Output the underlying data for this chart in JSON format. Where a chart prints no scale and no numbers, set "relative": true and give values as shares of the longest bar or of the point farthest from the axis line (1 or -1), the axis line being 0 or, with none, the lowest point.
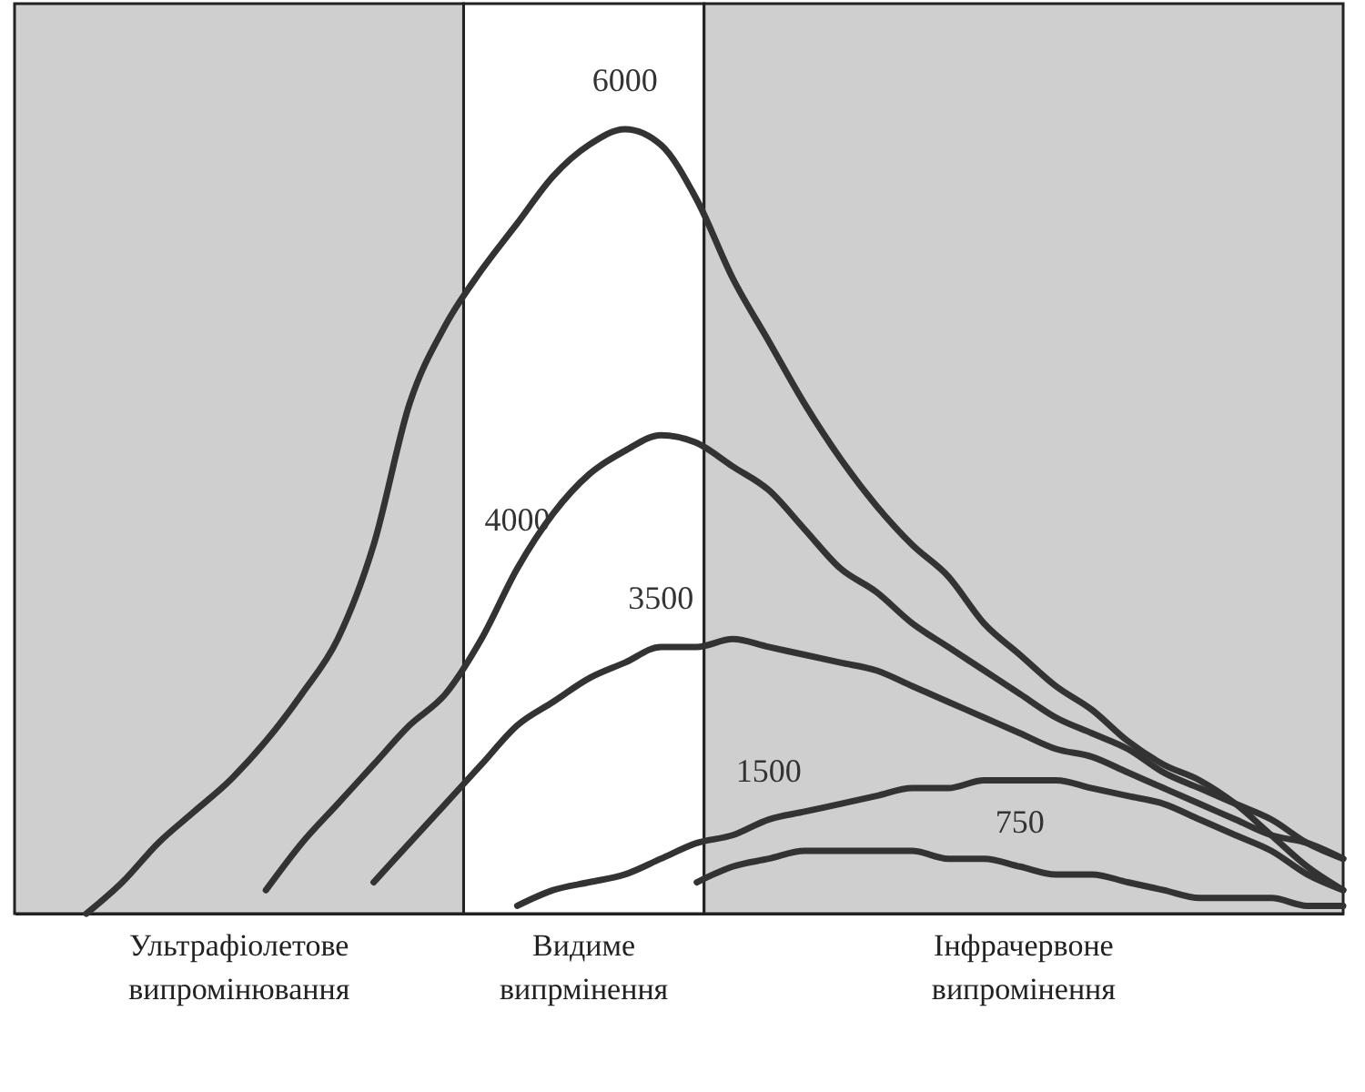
{
  "chart_data": {
    "type": "line",
    "relative": true,
    "tick_labels": false,
    "categories": [
      null,
      null,
      null,
      null,
      null,
      null,
      null,
      null,
      null,
      null,
      null,
      null,
      null,
      null,
      null,
      null,
      null,
      null,
      null,
      null,
      null,
      null,
      null,
      null,
      null,
      null,
      null,
      null,
      null,
      null,
      null,
      null,
      null,
      null,
      null,
      null,
      null,
      null
    ],
    "series": [
      {
        "name": "6000",
        "color": "#333333",
        "values": [
          null,
          null,
          0,
          0.04,
          0.09,
          0.13,
          0.17,
          0.22,
          0.28,
          0.35,
          0.47,
          0.65,
          0.75,
          0.82,
          0.88,
          0.94,
          0.98,
          1,
          0.98,
          0.91,
          0.81,
          0.73,
          0.65,
          0.58,
          0.52,
          0.47,
          0.43,
          0.37,
          0.33,
          0.29,
          0.26,
          0.22,
          0.19,
          0.17,
          0.14,
          0.1,
          0.06,
          0.03
        ]
      },
      {
        "name": "4000",
        "color": "#333333",
        "values": [
          null,
          null,
          null,
          null,
          null,
          null,
          null,
          0.03,
          0.09,
          0.14,
          0.19,
          0.24,
          0.28,
          0.35,
          0.44,
          0.51,
          0.56,
          0.59,
          0.61,
          0.6,
          0.57,
          0.54,
          0.49,
          0.44,
          0.41,
          0.37,
          0.34,
          0.31,
          0.28,
          0.25,
          0.23,
          0.21,
          0.18,
          0.16,
          0.14,
          0.12,
          0.09,
          0.07
        ]
      },
      {
        "name": "3500",
        "color": "#333333",
        "values": [
          null,
          null,
          null,
          null,
          null,
          null,
          null,
          null,
          null,
          null,
          0.04,
          0.09,
          0.14,
          0.19,
          0.24,
          0.27,
          0.3,
          0.32,
          0.34,
          0.34,
          0.35,
          0.34,
          0.33,
          0.32,
          0.31,
          0.29,
          0.27,
          0.25,
          0.23,
          0.21,
          0.2,
          0.18,
          0.16,
          0.14,
          0.12,
          0.1,
          0.09,
          0.07
        ]
      },
      {
        "name": "1500",
        "color": "#333333",
        "values": [
          null,
          null,
          null,
          null,
          null,
          null,
          null,
          null,
          null,
          null,
          null,
          null,
          null,
          null,
          0.01,
          0.03,
          0.04,
          0.05,
          0.07,
          0.09,
          0.1,
          0.12,
          0.13,
          0.14,
          0.15,
          0.16,
          0.16,
          0.17,
          0.17,
          0.17,
          0.16,
          0.15,
          0.14,
          0.12,
          0.1,
          0.08,
          0.05,
          0.03
        ]
      },
      {
        "name": "750",
        "color": "#333333",
        "values": [
          null,
          null,
          null,
          null,
          null,
          null,
          null,
          null,
          null,
          null,
          null,
          null,
          null,
          null,
          null,
          null,
          null,
          null,
          null,
          0.04,
          0.06,
          0.07,
          0.08,
          0.08,
          0.08,
          0.08,
          0.07,
          0.07,
          0.06,
          0.05,
          0.05,
          0.04,
          0.03,
          0.02,
          0.02,
          0.02,
          0.01,
          0.01
        ]
      }
    ],
    "annotations": [
      "Ультрафіолетове випромінювання",
      "Видиме випрмінення",
      "Інфрачервоне випромінення"
    ]
  }
}
